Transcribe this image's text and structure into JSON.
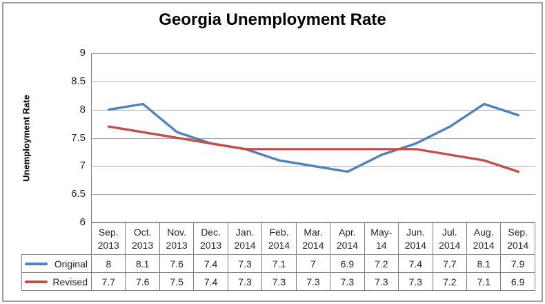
{
  "chart_data": {
    "type": "line",
    "title": "Georgia Unemployment Rate",
    "xlabel": "",
    "ylabel": "Unemployment Rate",
    "categories": [
      "Sep. 2013",
      "Oct. 2013",
      "Nov. 2013",
      "Dec. 2013",
      "Jan. 2014",
      "Feb. 2014",
      "Mar. 2014",
      "Apr. 2014",
      "May-14",
      "Jun. 2014",
      "Jul. 2014",
      "Aug. 2014",
      "Sep. 2014"
    ],
    "category_display_lines": [
      [
        "Sep.",
        "2013"
      ],
      [
        "Oct.",
        "2013"
      ],
      [
        "Nov.",
        "2013"
      ],
      [
        "Dec.",
        "2013"
      ],
      [
        "Jan.",
        "2014"
      ],
      [
        "Feb.",
        "2014"
      ],
      [
        "Mar.",
        "2014"
      ],
      [
        "Apr.",
        "2014"
      ],
      [
        "May-",
        "14"
      ],
      [
        "Jun.",
        "2014"
      ],
      [
        "Jul.",
        "2014"
      ],
      [
        "Aug.",
        "2014"
      ],
      [
        "Sep.",
        "2014"
      ]
    ],
    "series": [
      {
        "name": "Original",
        "color": "#4F81BD",
        "values": [
          8,
          8.1,
          7.6,
          7.4,
          7.3,
          7.1,
          7,
          6.9,
          7.2,
          7.4,
          7.7,
          8.1,
          7.9
        ]
      },
      {
        "name": "Revised",
        "color": "#C0504D",
        "values": [
          7.7,
          7.6,
          7.5,
          7.4,
          7.3,
          7.3,
          7.3,
          7.3,
          7.3,
          7.3,
          7.2,
          7.1,
          6.9
        ]
      }
    ],
    "ylim": [
      6,
      9
    ],
    "ytick_step": 0.5,
    "ytick_labels": [
      "9",
      "8.5",
      "8",
      "7.5",
      "7",
      "6.5",
      "6"
    ],
    "grid": true,
    "legend_position": "left-of-data-table",
    "colors": {
      "gridline": "#A6A6A6",
      "axis_and_table_border": "#808080",
      "title_text": "#000000",
      "body_text": "#262626"
    }
  }
}
